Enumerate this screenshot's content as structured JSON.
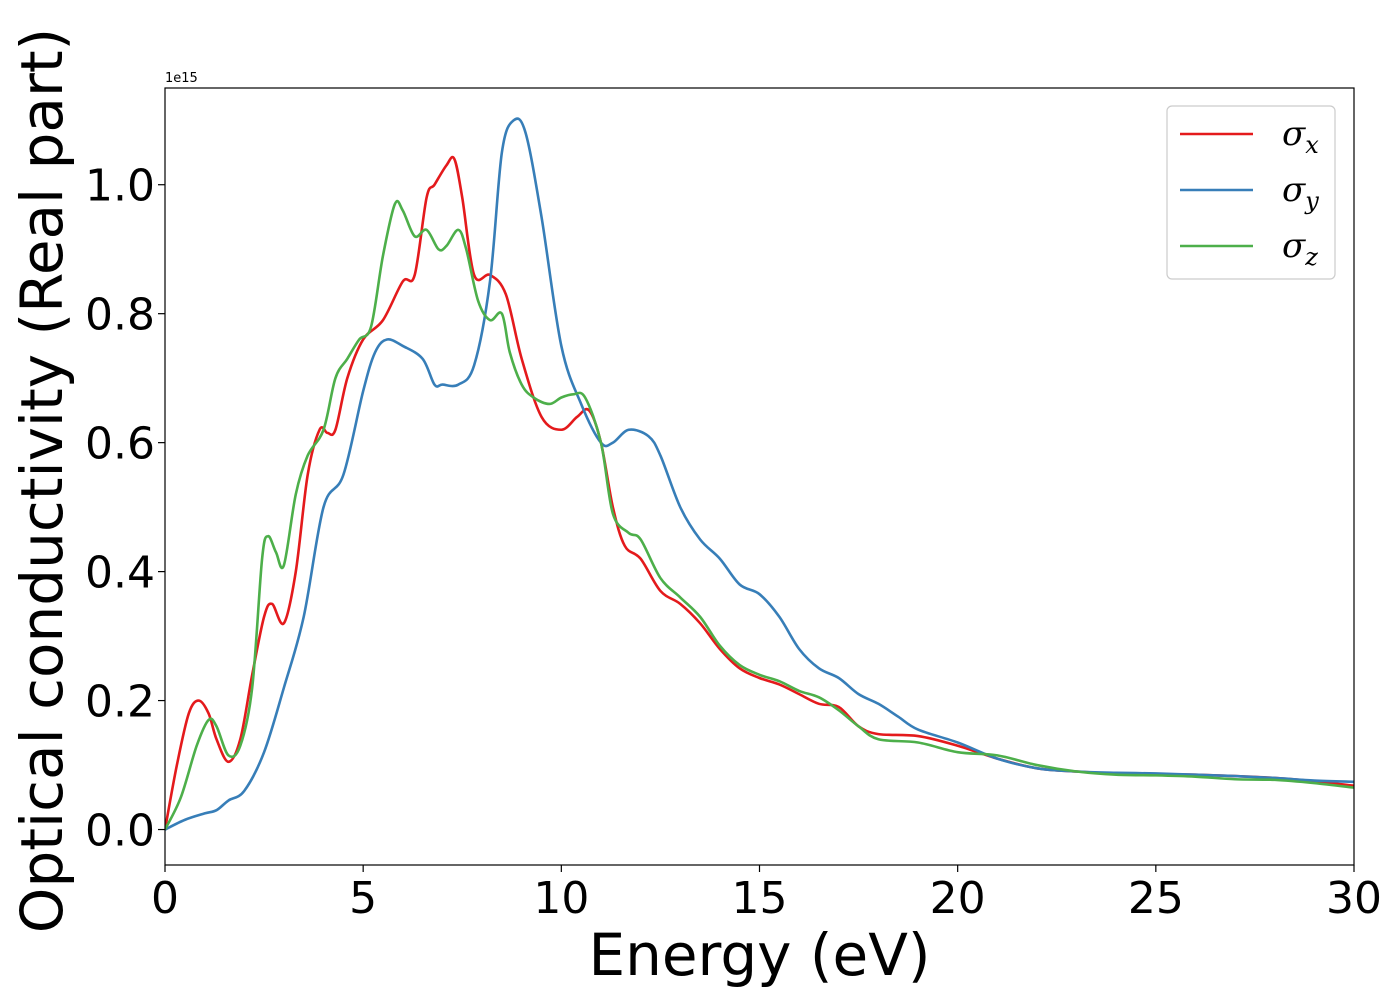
{
  "chart_data": {
    "type": "line",
    "xlabel": "Energy (eV)",
    "ylabel": "Optical conductivity (Real part)",
    "y_offset_label": "1e15",
    "xlim": [
      0,
      30
    ],
    "ylim": [
      -0.055,
      1.15
    ],
    "xticks": [
      0,
      5,
      10,
      15,
      20,
      25,
      30
    ],
    "xtick_labels": [
      "0",
      "5",
      "10",
      "15",
      "20",
      "25",
      "30"
    ],
    "yticks": [
      0.0,
      0.2,
      0.4,
      0.6,
      0.8,
      1.0
    ],
    "ytick_labels": [
      "0.0",
      "0.2",
      "0.4",
      "0.6",
      "0.8",
      "1.0"
    ],
    "grid": false,
    "legend_position": "top-right",
    "series": [
      {
        "name": "σx",
        "symbol": "σ",
        "subscript": "x",
        "color": "#e41a1c",
        "x": [
          0,
          0.3,
          0.6,
          0.85,
          1.1,
          1.3,
          1.6,
          1.9,
          2.2,
          2.5,
          2.7,
          3.0,
          3.3,
          3.6,
          3.9,
          4.1,
          4.3,
          4.6,
          5.0,
          5.5,
          6.0,
          6.3,
          6.6,
          6.8,
          7.1,
          7.3,
          7.5,
          7.8,
          8.2,
          8.6,
          9.0,
          9.5,
          10.0,
          10.4,
          10.7,
          11.0,
          11.3,
          11.6,
          12.0,
          12.5,
          13.0,
          13.5,
          14.0,
          14.5,
          15.0,
          15.5,
          16.0,
          16.5,
          17.0,
          17.5,
          18.0,
          19.0,
          20.0,
          21.0,
          22.0,
          23.0,
          24.0,
          25.0,
          26.0,
          27.0,
          28.0,
          29.0,
          30.0
        ],
        "y": [
          0.0,
          0.1,
          0.18,
          0.2,
          0.18,
          0.14,
          0.105,
          0.14,
          0.24,
          0.33,
          0.35,
          0.32,
          0.4,
          0.55,
          0.62,
          0.615,
          0.62,
          0.7,
          0.76,
          0.79,
          0.85,
          0.86,
          0.98,
          1.0,
          1.03,
          1.04,
          0.98,
          0.86,
          0.86,
          0.83,
          0.73,
          0.64,
          0.62,
          0.64,
          0.65,
          0.6,
          0.5,
          0.44,
          0.42,
          0.37,
          0.35,
          0.32,
          0.28,
          0.25,
          0.235,
          0.225,
          0.21,
          0.195,
          0.19,
          0.16,
          0.148,
          0.145,
          0.13,
          0.11,
          0.095,
          0.09,
          0.087,
          0.086,
          0.085,
          0.083,
          0.08,
          0.075,
          0.068
        ]
      },
      {
        "name": "σy",
        "symbol": "σ",
        "subscript": "y",
        "color": "#377eb8",
        "x": [
          0,
          0.5,
          1.0,
          1.3,
          1.6,
          2.0,
          2.5,
          3.0,
          3.5,
          4.0,
          4.5,
          5.0,
          5.3,
          5.6,
          6.0,
          6.5,
          6.8,
          7.0,
          7.4,
          7.8,
          8.2,
          8.5,
          8.8,
          9.1,
          9.5,
          10.0,
          10.5,
          11.0,
          11.3,
          11.7,
          12.2,
          12.5,
          13.0,
          13.5,
          14.0,
          14.5,
          15.0,
          15.5,
          16.0,
          16.5,
          17.0,
          17.5,
          18.0,
          18.5,
          19.0,
          20.0,
          21.0,
          22.0,
          23.0,
          24.0,
          25.0,
          26.0,
          27.0,
          28.0,
          29.0,
          30.0
        ],
        "y": [
          0.0,
          0.015,
          0.025,
          0.03,
          0.045,
          0.06,
          0.12,
          0.22,
          0.33,
          0.5,
          0.55,
          0.68,
          0.74,
          0.76,
          0.75,
          0.73,
          0.69,
          0.69,
          0.69,
          0.72,
          0.85,
          1.05,
          1.1,
          1.08,
          0.95,
          0.75,
          0.66,
          0.6,
          0.6,
          0.62,
          0.61,
          0.58,
          0.5,
          0.45,
          0.42,
          0.38,
          0.365,
          0.33,
          0.28,
          0.25,
          0.235,
          0.21,
          0.195,
          0.175,
          0.155,
          0.135,
          0.11,
          0.095,
          0.09,
          0.088,
          0.087,
          0.085,
          0.083,
          0.08,
          0.076,
          0.074
        ]
      },
      {
        "name": "σz",
        "symbol": "σ",
        "subscript": "z",
        "color": "#4daf4a",
        "x": [
          0,
          0.4,
          0.8,
          1.1,
          1.3,
          1.6,
          1.9,
          2.2,
          2.45,
          2.6,
          2.8,
          3.0,
          3.3,
          3.6,
          4.0,
          4.3,
          4.6,
          4.9,
          5.2,
          5.5,
          5.8,
          6.0,
          6.3,
          6.6,
          6.9,
          7.1,
          7.4,
          7.6,
          7.9,
          8.2,
          8.5,
          8.7,
          9.0,
          9.3,
          9.7,
          10.0,
          10.3,
          10.6,
          11.0,
          11.3,
          11.7,
          12.0,
          12.5,
          13.0,
          13.5,
          14.0,
          14.5,
          15.0,
          15.5,
          16.0,
          16.5,
          17.0,
          17.5,
          18.0,
          19.0,
          20.0,
          21.0,
          22.0,
          23.0,
          24.0,
          25.0,
          26.0,
          27.0,
          28.0,
          29.0,
          30.0
        ],
        "y": [
          0.0,
          0.05,
          0.13,
          0.17,
          0.16,
          0.115,
          0.13,
          0.22,
          0.42,
          0.455,
          0.43,
          0.41,
          0.52,
          0.58,
          0.62,
          0.7,
          0.73,
          0.76,
          0.78,
          0.89,
          0.97,
          0.96,
          0.92,
          0.93,
          0.9,
          0.905,
          0.93,
          0.9,
          0.82,
          0.79,
          0.8,
          0.74,
          0.69,
          0.67,
          0.66,
          0.67,
          0.675,
          0.67,
          0.6,
          0.49,
          0.46,
          0.45,
          0.39,
          0.36,
          0.33,
          0.285,
          0.255,
          0.24,
          0.23,
          0.215,
          0.205,
          0.185,
          0.16,
          0.14,
          0.135,
          0.12,
          0.115,
          0.1,
          0.09,
          0.085,
          0.084,
          0.082,
          0.078,
          0.077,
          0.072,
          0.065
        ]
      }
    ]
  }
}
